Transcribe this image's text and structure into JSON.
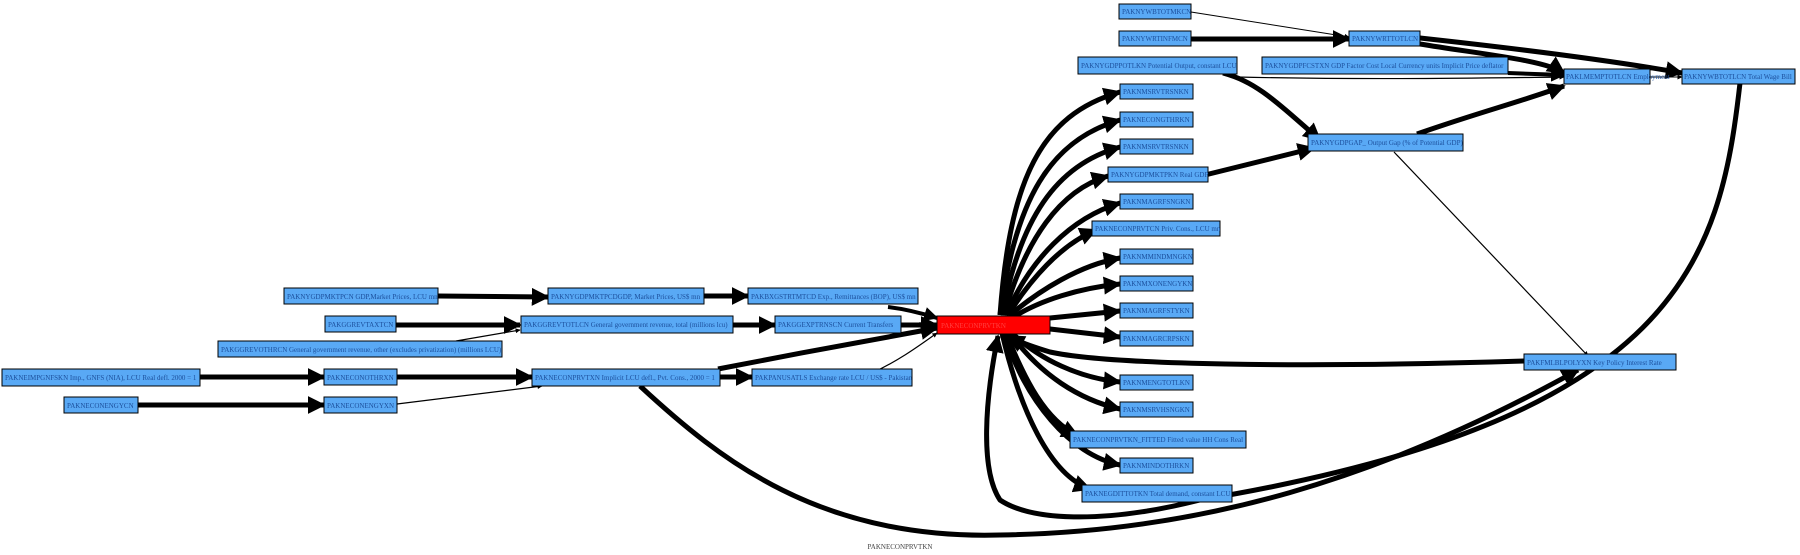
{
  "graph": {
    "caption": "PAKNECONPRVTKN",
    "center": "PAKNECONPRVTKN",
    "nodes": [
      {
        "id": "n01",
        "label": "PAKNYWBTOTMKCN"
      },
      {
        "id": "n02",
        "label": "PAKNYWRTINFMCN"
      },
      {
        "id": "n03",
        "label": "PAKNYWRTTOTLCN"
      },
      {
        "id": "n04",
        "label": "PAKNYGDPPOTLKN Potential Output, constant LCU"
      },
      {
        "id": "n05",
        "label": "PAKNYGDPFCSTXN GDP Factor Cost Local Currency units Implicit Price deflator"
      },
      {
        "id": "n06",
        "label": "PAKLMEMPTOTLCN Employment"
      },
      {
        "id": "n07",
        "label": "PAKNYWBTOTLCN Total Wage Bill"
      },
      {
        "id": "n08",
        "label": "PAKNMSRVTRSNKN"
      },
      {
        "id": "n09",
        "label": "PAKNECONGTHRKN"
      },
      {
        "id": "n10",
        "label": "PAKNMSRVTRSNKN"
      },
      {
        "id": "n11",
        "label": "PAKNYGDPMKTPKN Real GDP"
      },
      {
        "id": "n12",
        "label": "PAKNYGDPGAP_ Output Gap (% of Potential GDP)"
      },
      {
        "id": "n13",
        "label": "PAKNMAGRFSNGKN"
      },
      {
        "id": "n14",
        "label": "PAKNECONPRVTCN Priv. Cons., LCU mn"
      },
      {
        "id": "n15",
        "label": "PAKNMMINDMNGKN"
      },
      {
        "id": "n16",
        "label": "PAKNMXONENGYKN"
      },
      {
        "id": "n17",
        "label": "PAKNMAGRFSTYKN"
      },
      {
        "id": "n18",
        "label": "PAKNMAGRCRPSKN"
      },
      {
        "id": "n19",
        "label": "PAKNYGDPMKTPCN GDP,Market Prices, LCU mn"
      },
      {
        "id": "n20",
        "label": "PAKNYGDPMKTPCDGDP, Market Prices, US$ mn"
      },
      {
        "id": "n21",
        "label": "PAKBXGSTRTMTCD Exp., Remittances (BOP), US$ mn"
      },
      {
        "id": "n22",
        "label": "PAKGGREVTAXTCN"
      },
      {
        "id": "n23",
        "label": "PAKGGREVTOTLCN General government revenue, total (millions lcu)"
      },
      {
        "id": "n24",
        "label": "PAKGGEXPTRNSCN Current Transfers"
      },
      {
        "id": "n25",
        "label": "PAKGGREVOTHRCN General government revenue, other (excludes privatization) (millions LCU)"
      },
      {
        "id": "n26",
        "label": "PAKNEIMPGNFSKN Imp., GNFS (NIA), LCU Real defl. 2000 = 1"
      },
      {
        "id": "n27",
        "label": "PAKNECONOTHRXN"
      },
      {
        "id": "n28",
        "label": "PAKNECONPRVTXN Implicit LCU defl., Pvt. Cons., 2000 = 1"
      },
      {
        "id": "n29",
        "label": "PAKPANUSATLS Exchange rate LCU / US$ - Pakistan"
      },
      {
        "id": "n30",
        "label": "PAKNECONENGYCN"
      },
      {
        "id": "n31",
        "label": "PAKNECONENGYXN"
      },
      {
        "id": "n32",
        "label": "PAKFMLBLPOLYXN Key Policy Interest Rate"
      },
      {
        "id": "n33",
        "label": "PAKNMENGTOTLKN"
      },
      {
        "id": "n34",
        "label": "PAKNMSRVHSNGKN"
      },
      {
        "id": "n35",
        "label": "PAKNECONPRVTKN_FITTED Fitted value HH Cons Real"
      },
      {
        "id": "n36",
        "label": "PAKNMINDOTHRKN"
      },
      {
        "id": "n37",
        "label": "PAKNEGDITTOTKN Total demand, constant LCU"
      }
    ]
  }
}
